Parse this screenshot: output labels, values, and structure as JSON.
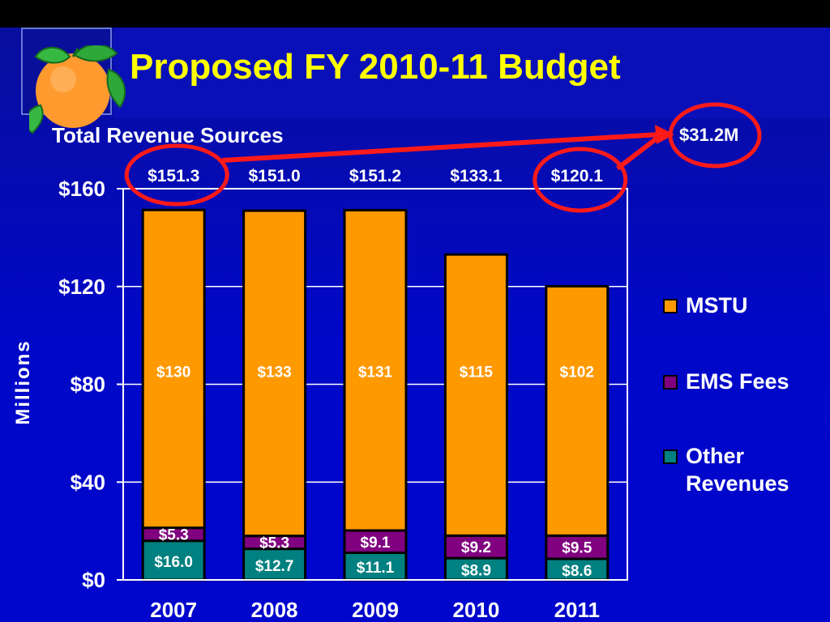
{
  "slide": {
    "title": "Proposed FY 2010-11 Budget",
    "subtitle": "Total Revenue Sources",
    "logo_icon": "orange-fruit-icon",
    "callout_text": "$31.2M"
  },
  "colors": {
    "background": "#0008c8",
    "title": "#ffff00",
    "mstu": "#ff9900",
    "ems": "#800080",
    "other": "#008080",
    "highlight": "#ff1a1a"
  },
  "chart_data": {
    "type": "bar",
    "stacked": true,
    "categories": [
      "2007",
      "2008",
      "2009",
      "2010",
      "2011"
    ],
    "series": [
      {
        "name": "Other Revenues",
        "values": [
          16.0,
          12.7,
          11.1,
          8.9,
          8.6
        ],
        "labels": [
          "$16.0",
          "$12.7",
          "$11.1",
          "$8.9",
          "$8.6"
        ],
        "color": "#008080"
      },
      {
        "name": "EMS Fees",
        "values": [
          5.3,
          5.3,
          9.1,
          9.2,
          9.5
        ],
        "labels": [
          "$5.3",
          "$5.3",
          "$9.1",
          "$9.2",
          "$9.5"
        ],
        "color": "#800080"
      },
      {
        "name": "MSTU",
        "values": [
          130,
          133,
          131,
          115,
          102
        ],
        "labels": [
          "$130",
          "$133",
          "$131",
          "$115",
          "$102"
        ],
        "color": "#ff9900"
      }
    ],
    "totals": [
      151.3,
      151.0,
      151.2,
      133.1,
      120.1
    ],
    "total_labels": [
      "$151.3",
      "$151.0",
      "$151.2",
      "$133.1",
      "$120.1"
    ],
    "ylabel": "Millions",
    "xlabel": "",
    "ylim": [
      0,
      160
    ],
    "yticks": [
      0,
      40,
      80,
      120,
      160
    ],
    "ytick_labels": [
      "$0",
      "$40",
      "$80",
      "$120",
      "$160"
    ],
    "grid": true,
    "legend": [
      "MSTU",
      "EMS Fees",
      "Other Revenues"
    ],
    "legend_position": "right",
    "annotations": [
      {
        "text": "$31.2M",
        "type": "difference",
        "from_category": "2007",
        "to_category": "2011"
      }
    ]
  }
}
